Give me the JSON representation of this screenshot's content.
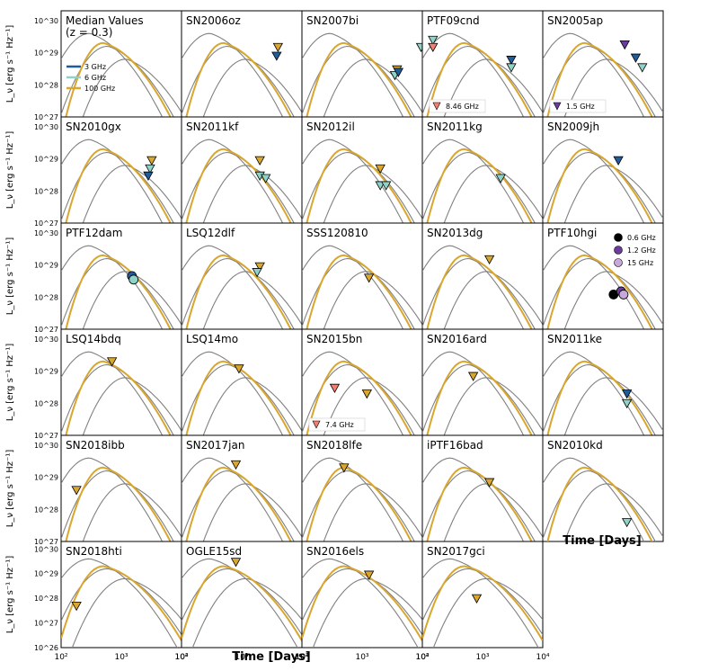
{
  "figure": {
    "xlabel": "Time [Days]",
    "ylabel": "L_ν [erg s⁻¹ Hz⁻¹]",
    "colors": {
      "3 GHz": "#1f5c99",
      "6 GHz": "#8fd3c8",
      "100 GHz": "#d9a62e",
      "8.46 GHz": "#f08070",
      "7.4 GHz": "#f08070",
      "1.5 GHz": "#6a3d9a",
      "0.6 GHz": "#000000",
      "1.2 GHz": "#6a3d9a",
      "15 GHz": "#c7a8d8",
      "model": "#808080"
    }
  },
  "chart_data": {
    "type": "line",
    "grid_layout": "6 rows x 5 columns (row 6 has 4 panels)",
    "x_scale": "log",
    "y_scale": "log",
    "xlim": [
      100,
      10000
    ],
    "ylim_rows_1_5": [
      1e+27,
      2e+30
    ],
    "ylim_row_6": [
      1e+26,
      2e+30
    ],
    "x_tick_labels": [
      "10²",
      "10³",
      "10⁴"
    ],
    "legend_main": [
      {
        "label": "3 GHz",
        "color": "#1f5c99"
      },
      {
        "label": "6 GHz",
        "color": "#8fd3c8"
      },
      {
        "label": "100 GHz",
        "color": "#d9a62e"
      }
    ],
    "legend_low_freq": [
      {
        "label": "0.6 GHz",
        "color": "#000000"
      },
      {
        "label": "1.2 GHz",
        "color": "#6a3d9a"
      },
      {
        "label": "15 GHz",
        "color": "#c7a8d8"
      }
    ],
    "panels": [
      {
        "name": "Median Values\n(z = 0.3)",
        "upper_limits": []
      },
      {
        "name": "SN2006oz",
        "upper_limits": [
          {
            "t": 4000,
            "L": 1.5e+29,
            "band": "100 GHz"
          },
          {
            "t": 3800,
            "L": 8e+28,
            "band": "3 GHz"
          }
        ]
      },
      {
        "name": "SN2007bi",
        "upper_limits": [
          {
            "t": 3800,
            "L": 3e+28,
            "band": "100 GHz"
          },
          {
            "t": 3500,
            "L": 2e+28,
            "band": "6 GHz"
          },
          {
            "t": 4000,
            "L": 2.5e+28,
            "band": "3 GHz"
          },
          {
            "t": 9500,
            "L": 1.5e+29,
            "band": "6 GHz"
          }
        ]
      },
      {
        "name": "PTF09cnd",
        "upper_limits": [
          {
            "t": 150,
            "L": 2.5e+29,
            "band": "6 GHz"
          },
          {
            "t": 150,
            "L": 1.5e+29,
            "band": "8.46 GHz"
          },
          {
            "t": 3000,
            "L": 6e+28,
            "band": "3 GHz"
          },
          {
            "t": 3000,
            "L": 3.5e+28,
            "band": "6 GHz"
          }
        ],
        "annotation": "8.46 GHz"
      },
      {
        "name": "SN2005ap",
        "upper_limits": [
          {
            "t": 2300,
            "L": 1.8e+29,
            "band": "1.5 GHz"
          },
          {
            "t": 3500,
            "L": 7e+28,
            "band": "3 GHz"
          },
          {
            "t": 4500,
            "L": 3.5e+28,
            "band": "6 GHz"
          }
        ],
        "annotation": "1.5 GHz"
      },
      {
        "name": "SN2010gx",
        "upper_limits": [
          {
            "t": 3200,
            "L": 9e+28,
            "band": "100 GHz"
          },
          {
            "t": 3000,
            "L": 5e+28,
            "band": "6 GHz"
          },
          {
            "t": 2800,
            "L": 3e+28,
            "band": "3 GHz"
          }
        ]
      },
      {
        "name": "SN2011kf",
        "upper_limits": [
          {
            "t": 2000,
            "L": 9e+28,
            "band": "100 GHz"
          },
          {
            "t": 2000,
            "L": 3e+28,
            "band": "6 GHz"
          },
          {
            "t": 2500,
            "L": 2.5e+28,
            "band": "6 GHz"
          }
        ]
      },
      {
        "name": "SN2012il",
        "upper_limits": [
          {
            "t": 2000,
            "L": 5e+28,
            "band": "100 GHz"
          },
          {
            "t": 2000,
            "L": 1.5e+28,
            "band": "6 GHz"
          },
          {
            "t": 2500,
            "L": 1.5e+28,
            "band": "6 GHz"
          }
        ]
      },
      {
        "name": "SN2011kg",
        "upper_limits": [
          {
            "t": 2000,
            "L": 2.5e+28,
            "band": "6 GHz"
          }
        ]
      },
      {
        "name": "SN2009jh",
        "upper_limits": [
          {
            "t": 1800,
            "L": 9e+28,
            "band": "3 GHz"
          }
        ]
      },
      {
        "name": "PTF12dam",
        "detections": [
          {
            "t": 1500,
            "L": 4.5e+28,
            "band": "3 GHz"
          },
          {
            "t": 1600,
            "L": 3.5e+28,
            "band": "6 GHz"
          }
        ]
      },
      {
        "name": "LSQ12dlf",
        "upper_limits": [
          {
            "t": 2000,
            "L": 9e+28,
            "band": "100 GHz"
          },
          {
            "t": 1800,
            "L": 6e+28,
            "band": "6 GHz"
          }
        ]
      },
      {
        "name": "SSS120810",
        "upper_limits": [
          {
            "t": 1300,
            "L": 4e+28,
            "band": "100 GHz"
          }
        ]
      },
      {
        "name": "SN2013dg",
        "upper_limits": [
          {
            "t": 1300,
            "L": 1.5e+29,
            "band": "100 GHz"
          }
        ]
      },
      {
        "name": "PTF10hgi",
        "detections": [
          {
            "t": 1500,
            "L": 1.2e+28,
            "band": "0.6 GHz"
          },
          {
            "t": 2000,
            "L": 1.5e+28,
            "band": "1.2 GHz"
          },
          {
            "t": 2200,
            "L": 1.2e+28,
            "band": "15 GHz"
          }
        ]
      },
      {
        "name": "LSQ14bdq",
        "upper_limits": [
          {
            "t": 700,
            "L": 2e+29,
            "band": "100 GHz"
          }
        ]
      },
      {
        "name": "LSQ14mo",
        "upper_limits": [
          {
            "t": 900,
            "L": 1.2e+29,
            "band": "100 GHz"
          }
        ]
      },
      {
        "name": "SN2015bn",
        "upper_limits": [
          {
            "t": 350,
            "L": 3e+28,
            "band": "7.4 GHz"
          },
          {
            "t": 1200,
            "L": 2e+28,
            "band": "100 GHz"
          }
        ],
        "annotation": "7.4 GHz"
      },
      {
        "name": "SN2016ard",
        "upper_limits": [
          {
            "t": 700,
            "L": 7e+28,
            "band": "100 GHz"
          }
        ]
      },
      {
        "name": "SN2011ke",
        "upper_limits": [
          {
            "t": 2500,
            "L": 2e+28,
            "band": "3 GHz"
          },
          {
            "t": 2500,
            "L": 1e+28,
            "band": "6 GHz"
          }
        ]
      },
      {
        "name": "SN2018ibb",
        "upper_limits": [
          {
            "t": 180,
            "L": 4e+28,
            "band": "100 GHz"
          }
        ]
      },
      {
        "name": "SN2017jan",
        "upper_limits": [
          {
            "t": 800,
            "L": 2.5e+29,
            "band": "100 GHz"
          }
        ]
      },
      {
        "name": "SN2018lfe",
        "upper_limits": [
          {
            "t": 500,
            "L": 2e+29,
            "band": "100 GHz"
          }
        ]
      },
      {
        "name": "iPTF16bad",
        "upper_limits": [
          {
            "t": 1300,
            "L": 7e+28,
            "band": "100 GHz"
          }
        ]
      },
      {
        "name": "SN2010kd",
        "upper_limits": [
          {
            "t": 2500,
            "L": 4e+27,
            "band": "6 GHz"
          }
        ]
      },
      {
        "name": "SN2018hti",
        "upper_limits": [
          {
            "t": 180,
            "L": 5e+27,
            "band": "100 GHz"
          }
        ]
      },
      {
        "name": "OGLE15sd",
        "upper_limits": [
          {
            "t": 800,
            "L": 3e+29,
            "band": "100 GHz"
          }
        ]
      },
      {
        "name": "SN2016els",
        "upper_limits": [
          {
            "t": 1300,
            "L": 9e+28,
            "band": "100 GHz"
          }
        ]
      },
      {
        "name": "SN2017gci",
        "upper_limits": [
          {
            "t": 800,
            "L": 1e+28,
            "band": "100 GHz"
          }
        ]
      }
    ]
  }
}
